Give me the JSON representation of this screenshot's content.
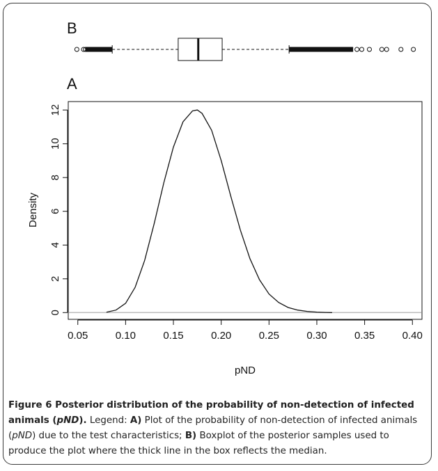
{
  "colors": {
    "ink": "#111111",
    "baseline": "#bdbdbd",
    "frame": "#3a3a3a"
  },
  "chart_data": [
    {
      "panel": "B",
      "type": "boxplot",
      "orientation": "horizontal",
      "stats": {
        "lower_whisker": 0.086,
        "q1": 0.155,
        "median": 0.176,
        "q3": 0.201,
        "upper_whisker": 0.271
      },
      "outliers_low": [
        0.049,
        0.056,
        0.058
      ],
      "outliers_low_dense_range": [
        0.058,
        0.086
      ],
      "outliers_high": [
        0.342,
        0.347,
        0.355,
        0.368,
        0.373,
        0.388,
        0.401
      ],
      "outliers_high_dense_range": [
        0.271,
        0.338
      ]
    },
    {
      "panel": "A",
      "type": "line",
      "xlabel": "pND",
      "ylabel": "Density",
      "xlim": [
        0.04,
        0.41
      ],
      "ylim": [
        -0.4,
        12.5
      ],
      "xticks": [
        "0.05",
        "0.10",
        "0.15",
        "0.20",
        "0.25",
        "0.30",
        "0.35",
        "0.40"
      ],
      "yticks": [
        "0",
        "2",
        "4",
        "6",
        "8",
        "10",
        "12"
      ],
      "series": [
        {
          "x": [
            0.08,
            0.09,
            0.1,
            0.11,
            0.12,
            0.13,
            0.14,
            0.15,
            0.16,
            0.17,
            0.175,
            0.18,
            0.19,
            0.2,
            0.21,
            0.22,
            0.23,
            0.24,
            0.25,
            0.26,
            0.27,
            0.28,
            0.29,
            0.3,
            0.31,
            0.316
          ],
          "y": [
            0.02,
            0.15,
            0.55,
            1.5,
            3.1,
            5.3,
            7.7,
            9.8,
            11.3,
            11.95,
            12.0,
            11.8,
            10.8,
            9.0,
            6.9,
            4.9,
            3.2,
            1.95,
            1.1,
            0.6,
            0.3,
            0.15,
            0.07,
            0.03,
            0.01,
            0.0
          ]
        }
      ]
    }
  ],
  "panel_labels": {
    "b": "B",
    "a": "A"
  },
  "caption": {
    "fig_label": "Figure 6 Posterior distribution of the probability of non-detection of infected animals (",
    "fig_term": "pND",
    "fig_end": ").",
    "legend_label": "Legend:",
    "part_a_label": "A)",
    "part_a_text1": "Plot of the probability of non-detection of infected animals (",
    "part_a_term": "pND",
    "part_a_text2": ") due to the test characteristics;",
    "part_b_label": "B)",
    "part_b_text": "Boxplot of the posterior samples used to produce the plot where the thick line in the box reflects the median."
  }
}
